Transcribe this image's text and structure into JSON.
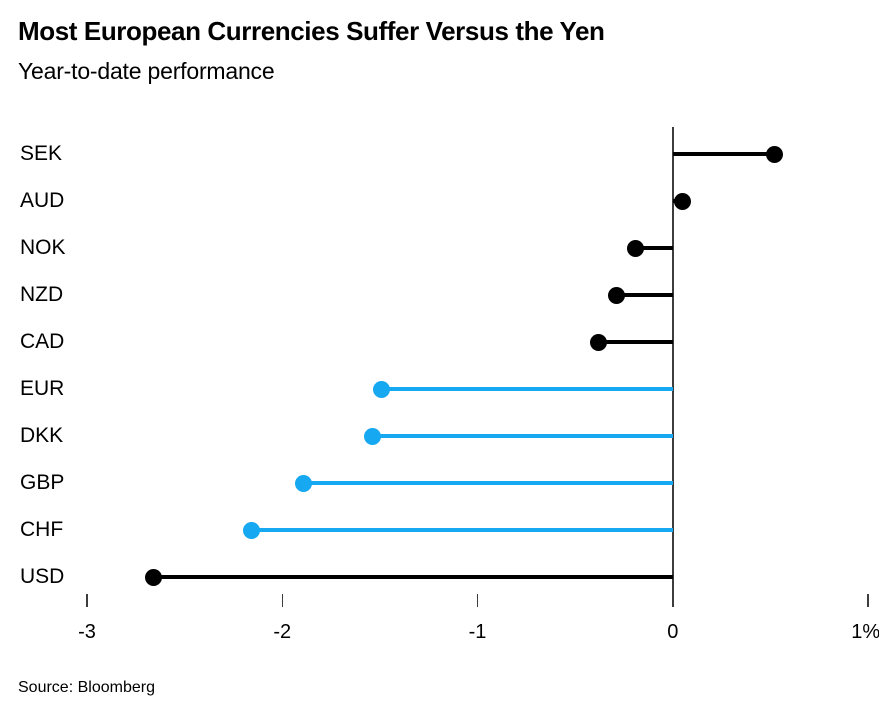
{
  "chart_data": {
    "type": "lollipop",
    "orientation": "horizontal",
    "title": "Most European Currencies Suffer Versus the Yen",
    "subtitle": "Year-to-date performance",
    "source": "Source: Bloomberg",
    "unit": "%",
    "categories": [
      "SEK",
      "AUD",
      "NOK",
      "NZD",
      "CAD",
      "EUR",
      "DKK",
      "GBP",
      "CHF",
      "USD"
    ],
    "values": [
      0.52,
      0.05,
      -0.19,
      -0.29,
      -0.38,
      -1.49,
      -1.54,
      -1.89,
      -2.16,
      -2.66
    ],
    "point_colors": [
      "#000000",
      "#000000",
      "#000000",
      "#000000",
      "#000000",
      "#16a8f0",
      "#16a8f0",
      "#16a8f0",
      "#16a8f0",
      "#000000"
    ],
    "highlight_color": "#16a8f0",
    "default_color": "#000000",
    "axis_color": "#3d3d3d",
    "baseline": 0,
    "xlim": [
      -3,
      1
    ],
    "xticks": [
      -3,
      -2,
      -1,
      0,
      1
    ],
    "xtick_labels": [
      "-3",
      "-2",
      "-1",
      "0",
      "1%"
    ],
    "grid": false,
    "legend": false
  }
}
